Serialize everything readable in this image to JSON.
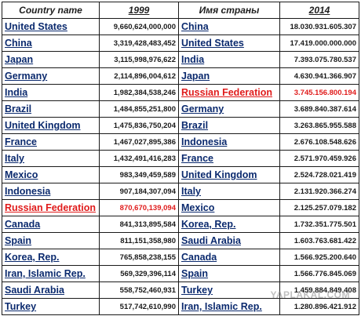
{
  "header": {
    "country_name": "Country name",
    "year_1999": "1999",
    "country_name_ru": "Имя страны",
    "year_2014": "2014"
  },
  "rows": [
    {
      "c1999": "United States",
      "v1999": "9,660,624,000,000",
      "c2014": "China",
      "v2014": "18.030.931.605.307",
      "hl1999": false,
      "hl2014": false
    },
    {
      "c1999": "China",
      "v1999": "3,319,428,483,452",
      "c2014": "United States",
      "v2014": "17.419.000.000.000",
      "hl1999": false,
      "hl2014": false
    },
    {
      "c1999": "Japan",
      "v1999": "3,115,998,976,622",
      "c2014": "India",
      "v2014": "7.393.075.780.537",
      "hl1999": false,
      "hl2014": false
    },
    {
      "c1999": "Germany",
      "v1999": "2,114,896,004,612",
      "c2014": "Japan",
      "v2014": "4.630.941.366.907",
      "hl1999": false,
      "hl2014": false
    },
    {
      "c1999": "India",
      "v1999": "1,982,384,538,246",
      "c2014": "Russian Federation",
      "v2014": "3.745.156.800.194",
      "hl1999": false,
      "hl2014": true
    },
    {
      "c1999": "Brazil",
      "v1999": "1,484,855,251,800",
      "c2014": "Germany",
      "v2014": "3.689.840.387.614",
      "hl1999": false,
      "hl2014": false
    },
    {
      "c1999": "United Kingdom",
      "v1999": "1,475,836,750,204",
      "c2014": "Brazil",
      "v2014": "3.263.865.955.588",
      "hl1999": false,
      "hl2014": false
    },
    {
      "c1999": "France",
      "v1999": "1,467,027,895,386",
      "c2014": "Indonesia",
      "v2014": "2.676.108.548.626",
      "hl1999": false,
      "hl2014": false
    },
    {
      "c1999": "Italy",
      "v1999": "1,432,491,416,283",
      "c2014": "France",
      "v2014": "2.571.970.459.926",
      "hl1999": false,
      "hl2014": false
    },
    {
      "c1999": "Mexico",
      "v1999": "983,349,459,589",
      "c2014": "United Kingdom",
      "v2014": "2.524.728.021.419",
      "hl1999": false,
      "hl2014": false
    },
    {
      "c1999": "Indonesia",
      "v1999": "907,184,307,094",
      "c2014": "Italy",
      "v2014": "2.131.920.366.274",
      "hl1999": false,
      "hl2014": false
    },
    {
      "c1999": "Russian Federation",
      "v1999": "870,670,139,094",
      "c2014": "Mexico",
      "v2014": "2.125.257.079.182",
      "hl1999": true,
      "hl2014": false
    },
    {
      "c1999": "Canada",
      "v1999": "841,313,895,584",
      "c2014": "Korea, Rep.",
      "v2014": "1.732.351.775.501",
      "hl1999": false,
      "hl2014": false
    },
    {
      "c1999": "Spain",
      "v1999": "811,151,358,980",
      "c2014": "Saudi Arabia",
      "v2014": "1.603.763.681.422",
      "hl1999": false,
      "hl2014": false
    },
    {
      "c1999": "Korea, Rep.",
      "v1999": "765,858,238,155",
      "c2014": "Canada",
      "v2014": "1.566.925.200.640",
      "hl1999": false,
      "hl2014": false
    },
    {
      "c1999": "Iran, Islamic Rep.",
      "v1999": "569,329,396,114",
      "c2014": "Spain",
      "v2014": "1.566.776.845.069",
      "hl1999": false,
      "hl2014": false
    },
    {
      "c1999": "Saudi Arabia",
      "v1999": "558,752,460,931",
      "c2014": "Turkey",
      "v2014": "1.459.884.849.408",
      "hl1999": false,
      "hl2014": false
    },
    {
      "c1999": "Turkey",
      "v1999": "517,742,610,990",
      "c2014": "Iran, Islamic Rep.",
      "v2014": "1.280.896.421.912",
      "hl1999": false,
      "hl2014": false
    }
  ],
  "watermark": "YAPLAKAL.COM",
  "colors": {
    "country_link": "#0b2a6e",
    "highlight": "#e01b1b",
    "border": "#1a1a1a"
  }
}
